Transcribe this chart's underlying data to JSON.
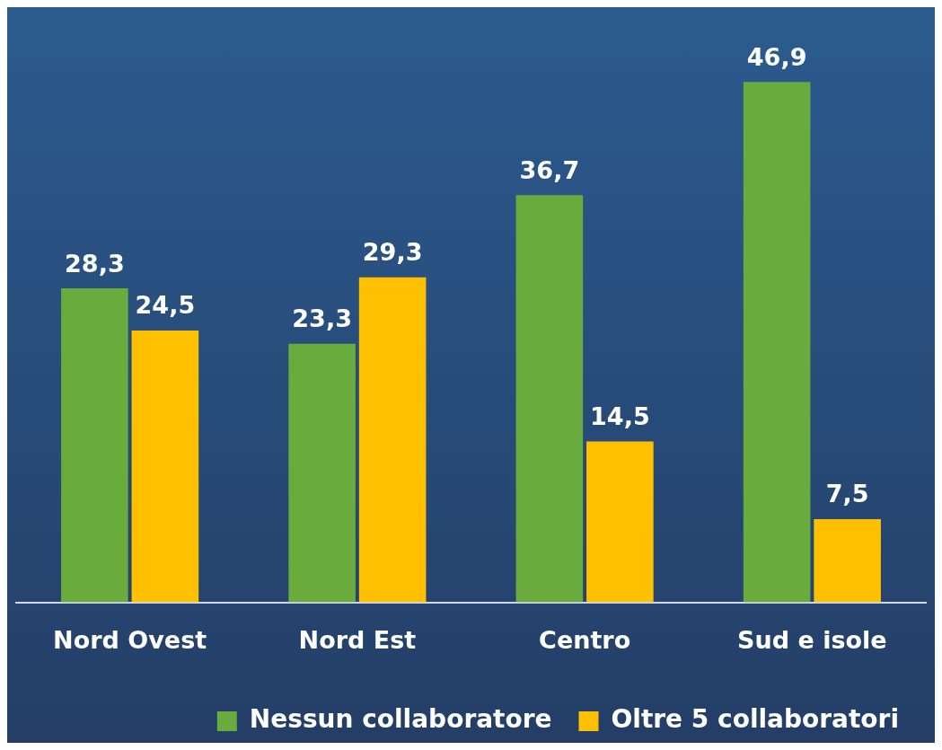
{
  "chart_data": {
    "type": "bar",
    "categories": [
      "Nord Ovest",
      "Nord Est",
      "Centro",
      "Sud e isole"
    ],
    "series": [
      {
        "name": "Nessun collaboratore",
        "color": "#6aab3e",
        "values": [
          28.3,
          23.3,
          36.7,
          46.9
        ],
        "value_labels": [
          "28,3",
          "23,3",
          "36,7",
          "46,9"
        ]
      },
      {
        "name": "Oltre 5 collaboratori",
        "color": "#ffc000",
        "values": [
          24.5,
          29.3,
          14.5,
          7.5
        ],
        "value_labels": [
          "24,5",
          "29,3",
          "14,5",
          "7,5"
        ]
      }
    ],
    "legend": "bottom",
    "grid": false
  }
}
